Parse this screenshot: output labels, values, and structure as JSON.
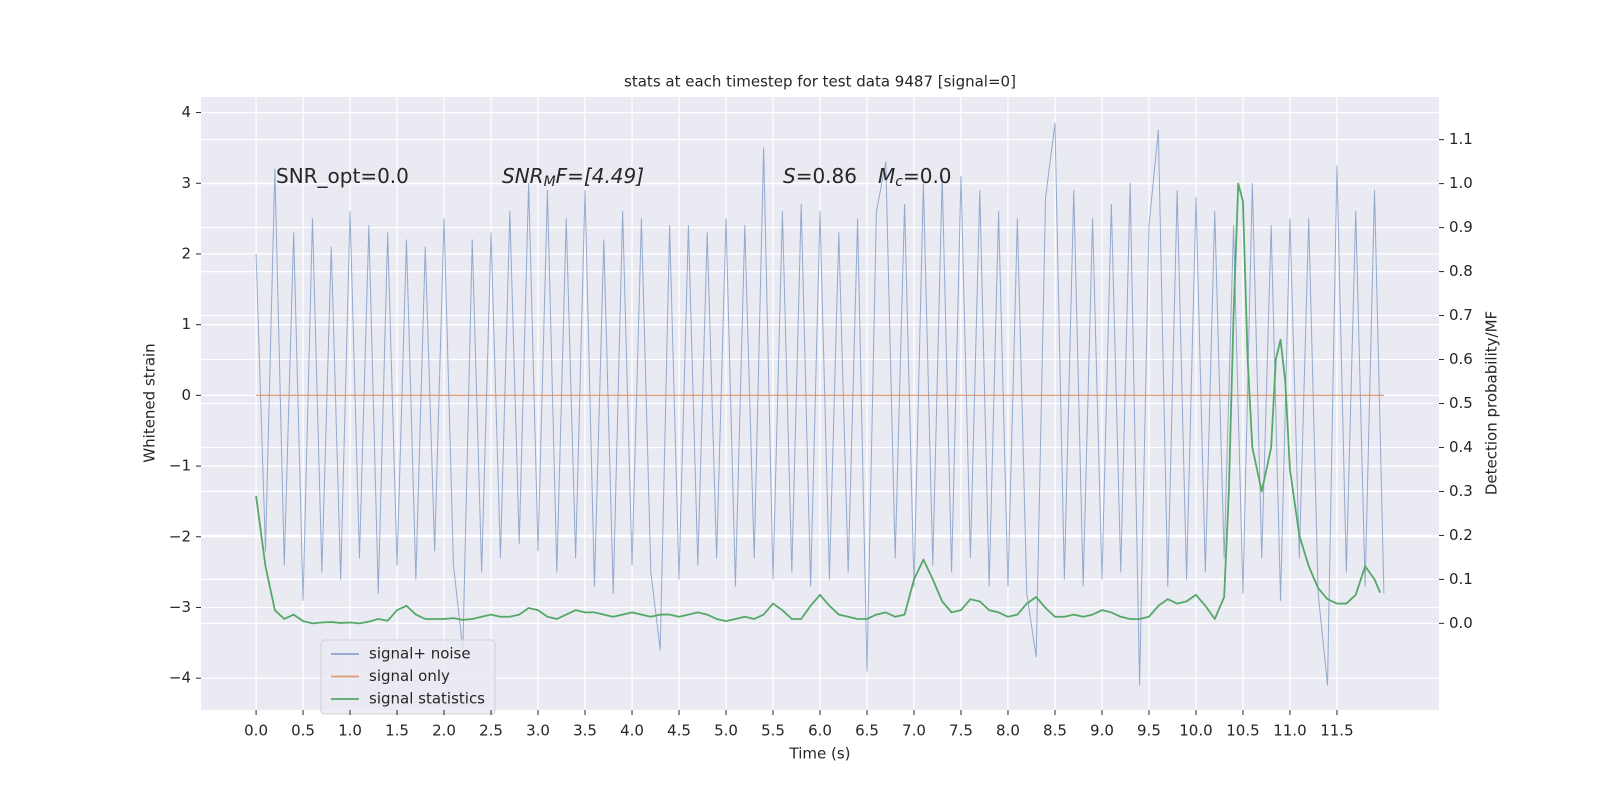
{
  "chart_data": {
    "type": "line",
    "title": "stats at each timestep for test data 9487 [signal=0]",
    "xlabel": "Time (s)",
    "ylabel": "Whitened strain",
    "y2label": "Detection probability/MF",
    "annotations": [
      [
        "SNR_opt=0.0"
      ],
      [
        "SNR",
        "M",
        "F=[4.49]"
      ],
      [
        "S",
        "=0.86"
      ],
      [
        "M",
        "c",
        "=0.0"
      ]
    ],
    "xlim": [
      -0.586,
      12.586
    ],
    "xticks": [
      {
        "value": 0,
        "label": "0.0"
      },
      0.5,
      {
        "value": 1,
        "label": "1.0"
      },
      1.5,
      {
        "value": 2,
        "label": "2.0"
      },
      2.5,
      {
        "value": 3,
        "label": "3.0"
      },
      3.5,
      {
        "value": 4,
        "label": "4.0"
      },
      4.5,
      {
        "value": 5,
        "label": "5.0"
      },
      5.5,
      {
        "value": 6,
        "label": "6.0"
      },
      6.5,
      {
        "value": 7,
        "label": "7.0"
      },
      7.5,
      {
        "value": 8,
        "label": "8.0"
      },
      8.5,
      {
        "value": 9,
        "label": "9.0"
      },
      9.5,
      {
        "value": 10,
        "label": "10.0"
      },
      10.5,
      {
        "value": 11,
        "label": "11.0"
      },
      11.5
    ],
    "ylim": [
      -4.45,
      4.22
    ],
    "yticks": [
      {
        "value": -4,
        "label": "−4"
      },
      {
        "value": -3,
        "label": "−3"
      },
      {
        "value": -2,
        "label": "−2"
      },
      {
        "value": -1,
        "label": "−1"
      },
      0,
      1,
      2,
      3,
      4
    ],
    "y2lim": [
      -0.197,
      1.197
    ],
    "y2ticks": [
      {
        "value": 0,
        "label": "0.0"
      },
      0.1,
      0.2,
      0.3,
      0.4,
      0.5,
      0.6,
      0.7,
      0.8,
      0.9,
      {
        "value": 1,
        "label": "1.0"
      },
      1.1
    ],
    "grid": true,
    "legend": "lower left",
    "series": [
      {
        "name": "signal+ noise",
        "color": "#4c72b0",
        "x": [
          0,
          0.1,
          0.2,
          0.3,
          0.4,
          0.5,
          0.6,
          0.7,
          0.8,
          0.9,
          1,
          1.1,
          1.2,
          1.3,
          1.4,
          1.5,
          1.6,
          1.7,
          1.8,
          1.9,
          2,
          2.1,
          2.2,
          2.3,
          2.4,
          2.5,
          2.6,
          2.7,
          2.8,
          2.9,
          3,
          3.1,
          3.2,
          3.3,
          3.4,
          3.5,
          3.6,
          3.7,
          3.8,
          3.9,
          4,
          4.1,
          4.2,
          4.3,
          4.4,
          4.5,
          4.6,
          4.7,
          4.8,
          4.9,
          5,
          5.1,
          5.2,
          5.3,
          5.4,
          5.5,
          5.6,
          5.7,
          5.8,
          5.9,
          6,
          6.1,
          6.2,
          6.3,
          6.4,
          6.5,
          6.6,
          6.7,
          6.8,
          6.9,
          7,
          7.1,
          7.2,
          7.3,
          7.4,
          7.5,
          7.6,
          7.7,
          7.8,
          7.9,
          8,
          8.1,
          8.2,
          8.3,
          8.4,
          8.5,
          8.6,
          8.7,
          8.8,
          8.9,
          9,
          9.1,
          9.2,
          9.3,
          9.4,
          9.5,
          9.6,
          9.7,
          9.8,
          9.9,
          10,
          10.1,
          10.2,
          10.3,
          10.4,
          10.5,
          10.6,
          10.7,
          10.8,
          10.9,
          11,
          11.1,
          11.2,
          11.3,
          11.4,
          11.5,
          11.6,
          11.7,
          11.8,
          11.9,
          12
        ],
        "values": [
          2.0,
          -2.2,
          3.2,
          -2.4,
          2.3,
          -2.9,
          2.5,
          -2.5,
          2.1,
          -2.6,
          2.6,
          -2.3,
          2.4,
          -2.8,
          2.3,
          -2.4,
          2.2,
          -2.6,
          2.1,
          -2.2,
          2.5,
          -2.4,
          -3.6,
          2.2,
          -2.5,
          2.3,
          -2.3,
          2.6,
          -2.1,
          3.0,
          -2.2,
          2.9,
          -2.5,
          2.5,
          -2.3,
          2.9,
          -2.7,
          2.2,
          -2.8,
          2.6,
          -2.4,
          2.5,
          -2.5,
          -3.6,
          2.4,
          -2.6,
          2.4,
          -2.4,
          2.3,
          -2.3,
          2.5,
          -2.7,
          2.4,
          -2.3,
          3.5,
          -2.6,
          2.6,
          -2.5,
          2.7,
          -2.7,
          2.6,
          -2.6,
          2.3,
          -2.5,
          2.5,
          -3.9,
          2.6,
          3.3,
          -2.3,
          2.7,
          -2.7,
          3.0,
          -2.4,
          3.1,
          -2.5,
          3.1,
          -2.3,
          2.9,
          -2.7,
          2.6,
          -2.7,
          2.5,
          -2.8,
          -3.7,
          2.8,
          3.85,
          -2.6,
          2.9,
          -2.7,
          2.5,
          -2.6,
          2.7,
          -2.5,
          3.0,
          -4.1,
          2.4,
          3.75,
          -2.7,
          2.9,
          -2.6,
          2.8,
          -2.5,
          2.6,
          -2.3,
          2.4,
          -2.8,
          3.0,
          -2.3,
          2.4,
          -2.9,
          2.5,
          -2.3,
          2.5,
          -2.8,
          -4.1,
          3.25,
          -2.5,
          2.6,
          -2.7,
          2.9,
          -2.8
        ]
      },
      {
        "name": "signal only",
        "color": "#dd8452",
        "x": [
          0,
          12
        ],
        "values": [
          0,
          0
        ]
      },
      {
        "name": "signal statistics",
        "color": "#55a868",
        "axis": "y2",
        "x": [
          0,
          0.1,
          0.2,
          0.3,
          0.4,
          0.5,
          0.6,
          0.7,
          0.8,
          0.9,
          1,
          1.1,
          1.2,
          1.3,
          1.4,
          1.5,
          1.6,
          1.7,
          1.8,
          1.9,
          2,
          2.1,
          2.2,
          2.3,
          2.4,
          2.5,
          2.6,
          2.7,
          2.8,
          2.9,
          3,
          3.1,
          3.2,
          3.3,
          3.4,
          3.5,
          3.6,
          3.7,
          3.8,
          3.9,
          4,
          4.1,
          4.2,
          4.3,
          4.4,
          4.5,
          4.6,
          4.7,
          4.8,
          4.9,
          5,
          5.1,
          5.2,
          5.3,
          5.4,
          5.5,
          5.6,
          5.7,
          5.8,
          5.9,
          6,
          6.1,
          6.2,
          6.3,
          6.4,
          6.5,
          6.6,
          6.7,
          6.8,
          6.9,
          7,
          7.1,
          7.2,
          7.3,
          7.4,
          7.5,
          7.6,
          7.7,
          7.8,
          7.9,
          8,
          8.1,
          8.2,
          8.3,
          8.4,
          8.5,
          8.6,
          8.7,
          8.8,
          8.9,
          9,
          9.1,
          9.2,
          9.3,
          9.4,
          9.5,
          9.6,
          9.7,
          9.8,
          9.9,
          10,
          10.1,
          10.2,
          10.3,
          10.35,
          10.4,
          10.45,
          10.5,
          10.55,
          10.6,
          10.7,
          10.8,
          10.85,
          10.9,
          10.95,
          11,
          11.1,
          11.2,
          11.3,
          11.4,
          11.5,
          11.6,
          11.7,
          11.8,
          11.9,
          11.96
        ],
        "values": [
          0.29,
          0.13,
          0.03,
          0.01,
          0.02,
          0.005,
          0,
          0.002,
          0.003,
          0.001,
          0.002,
          0,
          0.004,
          0.01,
          0.006,
          0.03,
          0.04,
          0.02,
          0.01,
          0.01,
          0.01,
          0.012,
          0.008,
          0.01,
          0.015,
          0.02,
          0.015,
          0.015,
          0.02,
          0.035,
          0.03,
          0.015,
          0.01,
          0.02,
          0.03,
          0.025,
          0.025,
          0.02,
          0.015,
          0.02,
          0.025,
          0.02,
          0.015,
          0.02,
          0.02,
          0.015,
          0.02,
          0.025,
          0.02,
          0.01,
          0.005,
          0.01,
          0.015,
          0.01,
          0.02,
          0.045,
          0.03,
          0.01,
          0.01,
          0.04,
          0.065,
          0.04,
          0.02,
          0.015,
          0.01,
          0.01,
          0.02,
          0.025,
          0.015,
          0.02,
          0.1,
          0.145,
          0.1,
          0.05,
          0.025,
          0.03,
          0.055,
          0.05,
          0.03,
          0.025,
          0.015,
          0.02,
          0.045,
          0.06,
          0.035,
          0.015,
          0.015,
          0.02,
          0.015,
          0.02,
          0.03,
          0.025,
          0.015,
          0.01,
          0.01,
          0.015,
          0.04,
          0.055,
          0.045,
          0.05,
          0.065,
          0.04,
          0.01,
          0.06,
          0.3,
          0.7,
          1.0,
          0.96,
          0.6,
          0.4,
          0.3,
          0.4,
          0.6,
          0.645,
          0.55,
          0.35,
          0.2,
          0.13,
          0.08,
          0.055,
          0.045,
          0.045,
          0.065,
          0.13,
          0.1,
          0.07
        ]
      }
    ]
  }
}
